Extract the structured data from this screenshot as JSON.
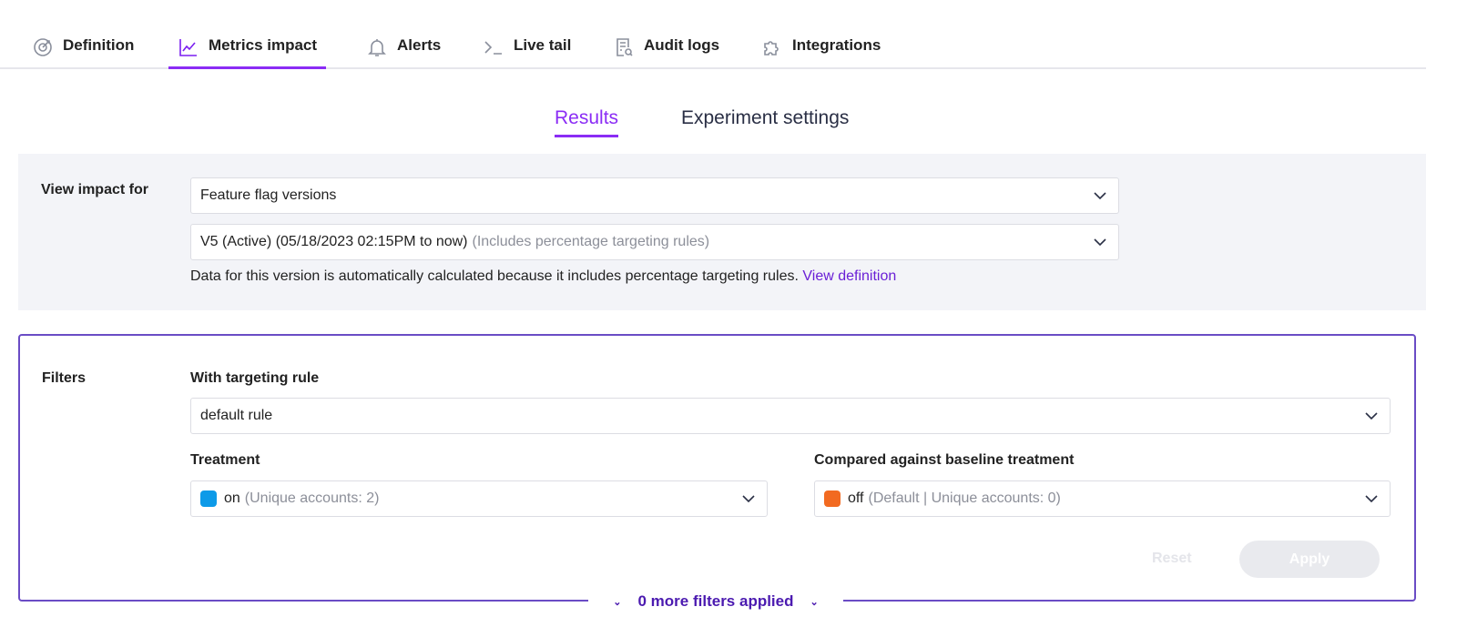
{
  "tabs": [
    {
      "label": "Definition",
      "icon": "target-icon"
    },
    {
      "label": "Metrics impact",
      "icon": "chart-line-icon",
      "active": true
    },
    {
      "label": "Alerts",
      "icon": "bell-icon"
    },
    {
      "label": "Live tail",
      "icon": "terminal-icon"
    },
    {
      "label": "Audit logs",
      "icon": "document-search-icon"
    },
    {
      "label": "Integrations",
      "icon": "puzzle-icon"
    }
  ],
  "subtabs": [
    "Results",
    "Experiment settings"
  ],
  "view_impact": {
    "label": "View impact for",
    "type_select": "Feature flag versions",
    "version_select": "V5 (Active) (05/18/2023 02:15PM to now)",
    "version_hint": "(Includes percentage targeting rules)",
    "note": "Data for this version is automatically calculated because it includes percentage targeting rules.",
    "note_link": "View definition"
  },
  "filters": {
    "label": "Filters",
    "targeting_label": "With targeting rule",
    "targeting_value": "default rule",
    "treatment_label": "Treatment",
    "treatment_value": "on",
    "treatment_hint": "(Unique accounts: 2)",
    "treatment_color": "#0d9ae8",
    "baseline_label": "Compared against baseline treatment",
    "baseline_value": "off",
    "baseline_hint": "(Default | Unique accounts: 0)",
    "baseline_color": "#f26a21",
    "reset": "Reset",
    "apply": "Apply",
    "more": "0 more filters applied"
  }
}
